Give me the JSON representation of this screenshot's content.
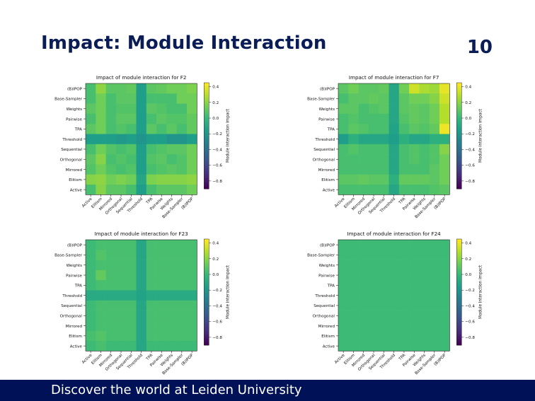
{
  "slide": {
    "title": "Impact: Module Interaction",
    "page_number": "10"
  },
  "footer": {
    "text": "Discover the world at Leiden University"
  },
  "chart_data": [
    {
      "type": "heatmap",
      "title": "Impact of module interaction for F2",
      "x_categories": [
        "Active",
        "Elitism",
        "Mirrored",
        "Orthogonal",
        "Sequential",
        "Threshold",
        "TPA",
        "Pairwise",
        "Weights",
        "Base-Sampler",
        "(B)IPOP"
      ],
      "y_categories": [
        "(B)IPOP",
        "Base-Sampler",
        "Weights",
        "Pairwise",
        "TPA",
        "Threshold",
        "Sequential",
        "Orthogonal",
        "Mirrored",
        "Elitism",
        "Active"
      ],
      "colorbar": {
        "label": "Module interaction impact",
        "ticks": [
          0.4,
          0.2,
          0.0,
          -0.2,
          -0.4,
          -0.6,
          -0.8
        ],
        "range": [
          -0.9,
          0.45
        ]
      },
      "values": [
        [
          0.05,
          0.22,
          0.1,
          0.1,
          0.12,
          -0.15,
          0.1,
          0.12,
          0.15,
          0.15,
          0.18
        ],
        [
          0.05,
          0.15,
          0.05,
          0.1,
          0.1,
          -0.15,
          0.05,
          0.05,
          0.05,
          0.15,
          0.15
        ],
        [
          0.1,
          0.15,
          0.05,
          0.08,
          0.08,
          -0.15,
          0.1,
          0.08,
          0.05,
          0.05,
          0.15
        ],
        [
          0.05,
          0.15,
          0.05,
          0.1,
          0.1,
          -0.15,
          0.05,
          0.1,
          0.08,
          0.08,
          0.12
        ],
        [
          0.1,
          0.15,
          0.05,
          0.08,
          0.05,
          -0.15,
          0.1,
          0.05,
          0.1,
          0.05,
          0.12
        ],
        [
          -0.15,
          -0.15,
          -0.15,
          -0.18,
          -0.15,
          -0.2,
          -0.15,
          -0.15,
          -0.2,
          -0.2,
          -0.15
        ],
        [
          0.05,
          0.15,
          0.08,
          0.05,
          0.08,
          -0.15,
          0.05,
          0.08,
          0.1,
          0.1,
          0.15
        ],
        [
          0.1,
          0.2,
          0.05,
          0.08,
          0.05,
          -0.15,
          0.08,
          0.1,
          0.05,
          0.08,
          0.15
        ],
        [
          0.08,
          0.15,
          0.08,
          0.05,
          0.08,
          -0.15,
          0.05,
          0.08,
          0.1,
          0.08,
          0.15
        ],
        [
          0.2,
          0.22,
          0.15,
          0.18,
          0.15,
          -0.1,
          0.18,
          0.2,
          0.2,
          0.2,
          0.22
        ],
        [
          0.05,
          0.2,
          0.1,
          0.1,
          0.05,
          -0.15,
          0.05,
          0.1,
          0.1,
          0.1,
          0.15
        ]
      ]
    },
    {
      "type": "heatmap",
      "title": "Impact of module interaction for F7",
      "x_categories": [
        "Active",
        "Elitism",
        "Mirrored",
        "Orthogonal",
        "Sequential",
        "Threshold",
        "TPA",
        "Pairwise",
        "Weights",
        "Base-Sampler",
        "(B)IPOP"
      ],
      "y_categories": [
        "(B)IPOP",
        "Base-Sampler",
        "Weights",
        "Pairwise",
        "TPA",
        "Threshold",
        "Sequential",
        "Orthogonal",
        "Mirrored",
        "Elitism",
        "Active"
      ],
      "colorbar": {
        "label": "Module interaction impact",
        "ticks": [
          0.4,
          0.2,
          0.0,
          -0.2,
          -0.4,
          -0.6,
          -0.8
        ],
        "range": [
          -0.9,
          0.45
        ]
      },
      "values": [
        [
          0.1,
          0.15,
          0.1,
          0.1,
          0.12,
          -0.1,
          0.15,
          0.35,
          0.28,
          0.25,
          0.4
        ],
        [
          0.05,
          0.1,
          0.1,
          0.12,
          0.1,
          -0.1,
          0.1,
          0.15,
          0.15,
          0.2,
          0.35
        ],
        [
          0.1,
          0.1,
          0.05,
          0.08,
          0.1,
          -0.1,
          0.1,
          0.12,
          0.1,
          0.15,
          0.3
        ],
        [
          0.05,
          0.08,
          0.05,
          0.05,
          0.05,
          -0.1,
          0.08,
          0.12,
          0.1,
          0.15,
          0.3
        ],
        [
          0.05,
          0.1,
          0.08,
          0.05,
          0.05,
          -0.12,
          0.05,
          0.1,
          0.08,
          0.12,
          0.42
        ],
        [
          -0.15,
          -0.05,
          -0.1,
          -0.1,
          -0.1,
          -0.15,
          -0.05,
          -0.1,
          -0.1,
          -0.05,
          -0.05
        ],
        [
          0.05,
          0.08,
          0.05,
          0.05,
          0.05,
          -0.1,
          0.05,
          0.08,
          0.05,
          0.08,
          0.2
        ],
        [
          0.05,
          0.05,
          0.05,
          0.05,
          0.05,
          -0.1,
          0.05,
          0.08,
          0.05,
          0.08,
          0.15
        ],
        [
          0.05,
          0.05,
          0.05,
          0.05,
          0.05,
          -0.1,
          0.05,
          0.05,
          0.05,
          0.1,
          0.15
        ],
        [
          0.1,
          0.1,
          0.12,
          0.1,
          0.1,
          -0.05,
          0.12,
          0.12,
          0.12,
          0.1,
          0.15
        ],
        [
          0.05,
          0.05,
          0.05,
          0.05,
          0.05,
          -0.1,
          0.05,
          0.05,
          0.05,
          0.08,
          0.1
        ]
      ]
    },
    {
      "type": "heatmap",
      "title": "Impact of module interaction for F23",
      "x_categories": [
        "Active",
        "Elitism",
        "Mirrored",
        "Orthogonal",
        "Sequential",
        "Threshold",
        "TPA",
        "Pairwise",
        "Weights",
        "Base-Sampler",
        "(B)IPOP"
      ],
      "y_categories": [
        "(B)IPOP",
        "Base-Sampler",
        "Weights",
        "Pairwise",
        "TPA",
        "Threshold",
        "Sequential",
        "Orthogonal",
        "Mirrored",
        "Elitism",
        "Active"
      ],
      "colorbar": {
        "label": "Module interaction impact",
        "ticks": [
          0.4,
          0.2,
          0.0,
          -0.2,
          -0.4,
          -0.6,
          -0.8
        ],
        "range": [
          -0.9,
          0.45
        ]
      },
      "values": [
        [
          0.02,
          0.05,
          0.05,
          0.05,
          0.05,
          -0.1,
          0.05,
          0.05,
          0.05,
          0.05,
          0.05
        ],
        [
          0.02,
          0.08,
          0.05,
          0.05,
          0.05,
          -0.1,
          0.05,
          0.05,
          0.05,
          0.05,
          0.05
        ],
        [
          0.02,
          0.05,
          0.05,
          0.05,
          0.05,
          -0.1,
          0.05,
          0.05,
          0.05,
          0.05,
          0.05
        ],
        [
          0.02,
          0.12,
          0.05,
          0.05,
          0.05,
          -0.1,
          0.05,
          0.05,
          0.05,
          0.05,
          0.05
        ],
        [
          0.02,
          0.05,
          0.05,
          0.05,
          0.05,
          -0.1,
          0.05,
          0.05,
          0.05,
          0.05,
          0.05
        ],
        [
          -0.08,
          -0.08,
          -0.08,
          -0.08,
          -0.08,
          -0.12,
          -0.08,
          -0.08,
          -0.08,
          -0.08,
          -0.08
        ],
        [
          0.02,
          0.05,
          0.05,
          0.05,
          0.05,
          -0.1,
          0.05,
          0.05,
          0.05,
          0.05,
          0.05
        ],
        [
          0.02,
          0.05,
          0.05,
          0.05,
          0.05,
          -0.1,
          0.05,
          0.05,
          0.05,
          0.05,
          0.05
        ],
        [
          0.02,
          0.05,
          0.05,
          0.05,
          0.05,
          -0.1,
          0.05,
          0.05,
          0.05,
          0.05,
          0.05
        ],
        [
          0.05,
          0.08,
          0.05,
          0.05,
          0.05,
          -0.1,
          0.05,
          0.05,
          0.05,
          0.05,
          0.05
        ],
        [
          0.02,
          0.05,
          0.02,
          0.02,
          0.02,
          -0.1,
          0.02,
          0.02,
          0.02,
          0.02,
          0.02
        ]
      ]
    },
    {
      "type": "heatmap",
      "title": "Impact of module interaction for F24",
      "x_categories": [
        "Active",
        "Elitism",
        "Mirrored",
        "Orthogonal",
        "Sequential",
        "Threshold",
        "TPA",
        "Pairwise",
        "Weights",
        "Base-Sampler",
        "(B)IPOP"
      ],
      "y_categories": [
        "(B)IPOP",
        "Base-Sampler",
        "Weights",
        "Pairwise",
        "TPA",
        "Threshold",
        "Sequential",
        "Orthogonal",
        "Mirrored",
        "Elitism",
        "Active"
      ],
      "colorbar": {
        "label": "Module interaction impact",
        "ticks": [
          0.4,
          0.2,
          0.0,
          -0.2,
          -0.4,
          -0.6,
          -0.8
        ],
        "range": [
          -0.9,
          0.45
        ]
      },
      "values": [
        [
          0.02,
          0.02,
          0.02,
          0.02,
          0.02,
          0.02,
          0.02,
          0.02,
          0.02,
          0.02,
          0.02
        ],
        [
          0.02,
          0.02,
          0.02,
          0.02,
          0.02,
          0.02,
          0.02,
          0.02,
          0.02,
          0.02,
          0.02
        ],
        [
          0.02,
          0.02,
          0.02,
          0.02,
          0.02,
          0.02,
          0.02,
          0.02,
          0.02,
          0.02,
          0.02
        ],
        [
          0.02,
          0.02,
          0.02,
          0.02,
          0.02,
          0.02,
          0.02,
          0.02,
          0.02,
          0.02,
          0.02
        ],
        [
          0.02,
          0.02,
          0.02,
          0.02,
          0.02,
          0.02,
          0.02,
          0.02,
          0.02,
          0.02,
          0.02
        ],
        [
          0.02,
          0.02,
          0.02,
          0.02,
          0.02,
          0.02,
          0.02,
          0.02,
          0.02,
          0.02,
          0.02
        ],
        [
          0.02,
          0.02,
          0.02,
          0.02,
          0.02,
          0.02,
          0.02,
          0.02,
          0.02,
          0.02,
          0.02
        ],
        [
          0.02,
          0.02,
          0.02,
          0.02,
          0.02,
          0.02,
          0.02,
          0.02,
          0.02,
          0.02,
          0.02
        ],
        [
          0.02,
          0.02,
          0.02,
          0.02,
          0.02,
          0.02,
          0.02,
          0.02,
          0.02,
          0.02,
          0.02
        ],
        [
          0.02,
          0.02,
          0.02,
          0.02,
          0.02,
          0.02,
          0.02,
          0.02,
          0.02,
          0.02,
          0.02
        ],
        [
          0.02,
          0.02,
          0.02,
          0.02,
          0.02,
          0.02,
          0.02,
          0.02,
          0.02,
          0.02,
          0.02
        ]
      ]
    }
  ]
}
